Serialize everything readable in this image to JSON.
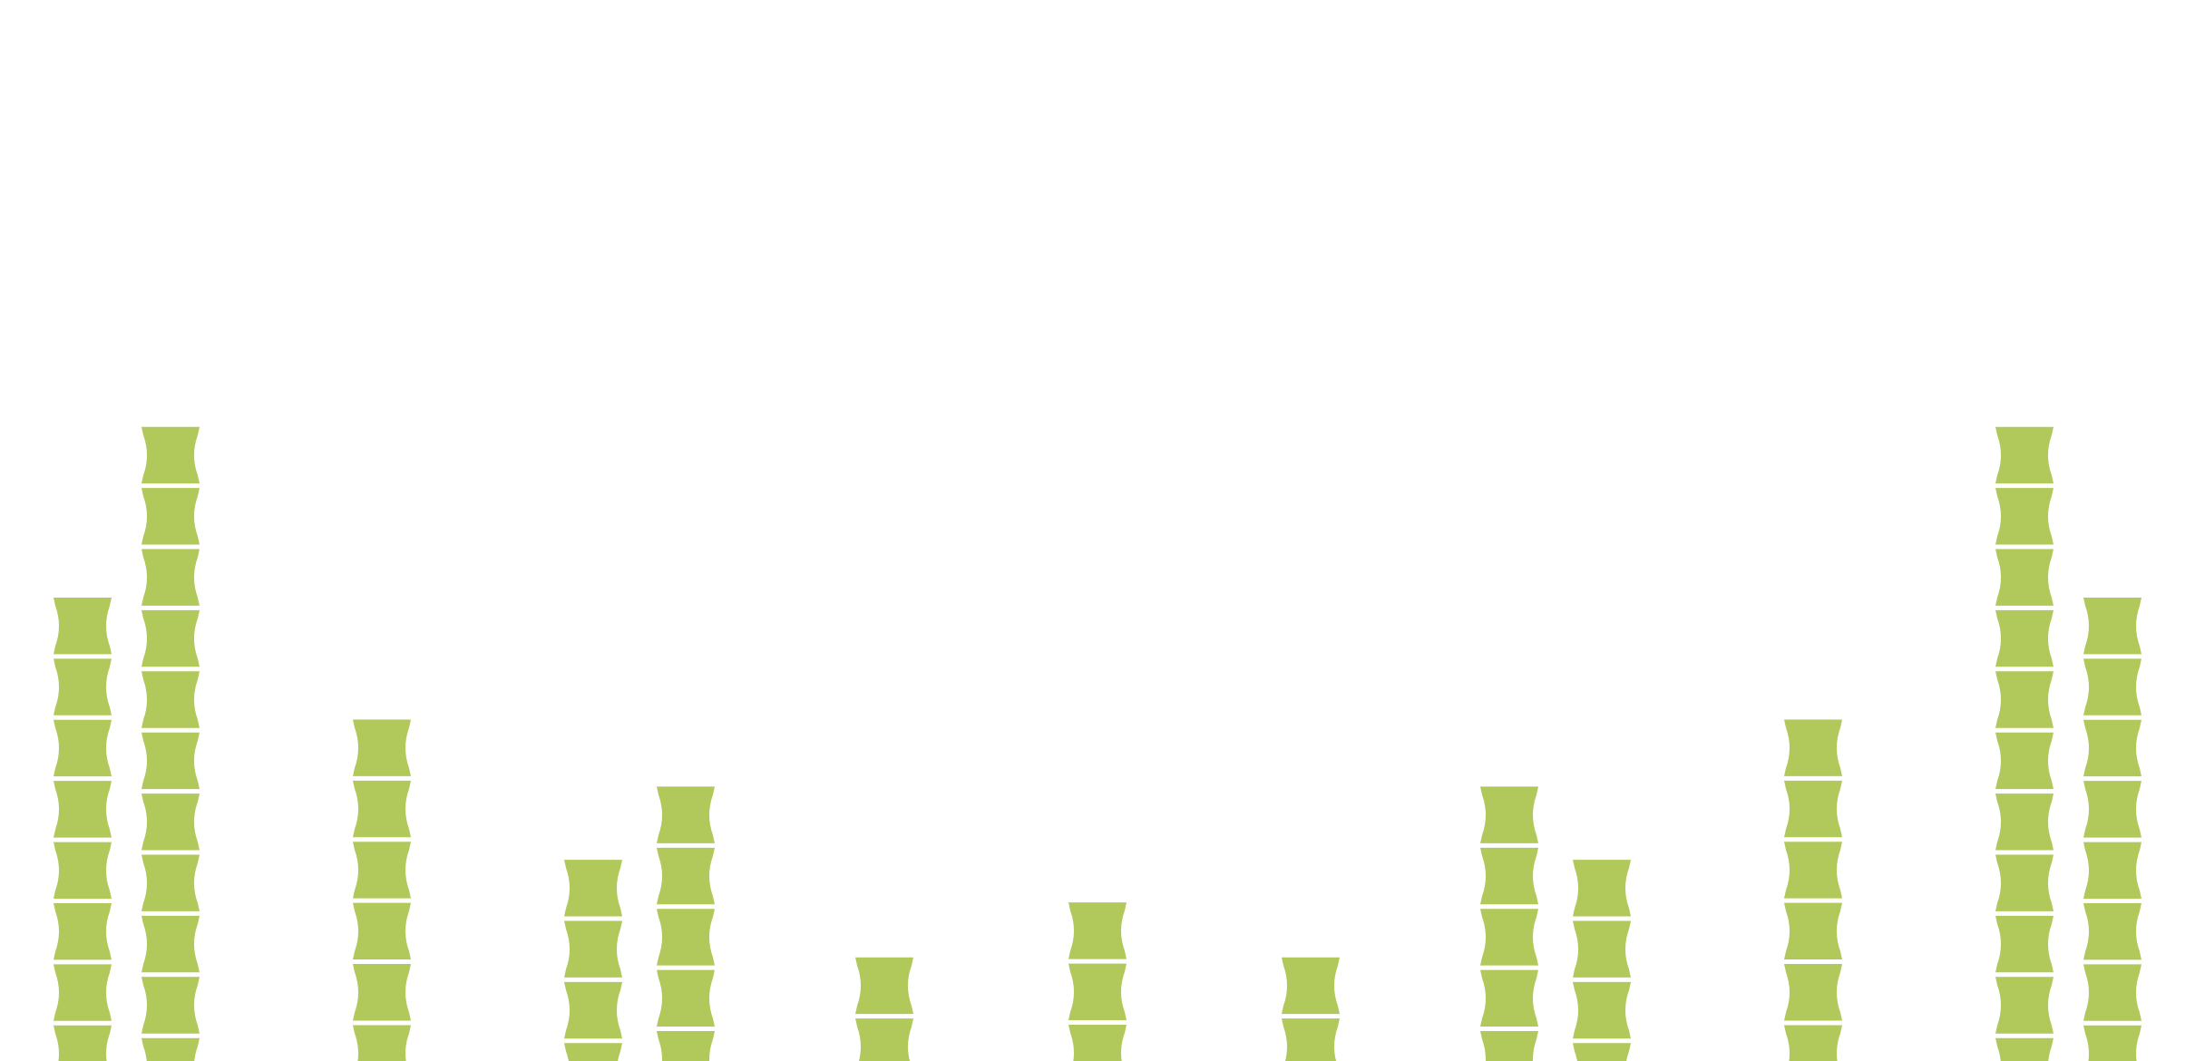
{
  "chart_data": {
    "type": "pictogram-bar",
    "values": [
      7.6,
      10.4,
      5.6,
      3.3,
      4.5,
      1.7,
      2.6,
      1.7,
      4.5,
      3.3,
      5.6,
      10.4,
      7.6
    ],
    "color": "#b0c95a",
    "ylim": [
      0,
      17.4
    ]
  }
}
